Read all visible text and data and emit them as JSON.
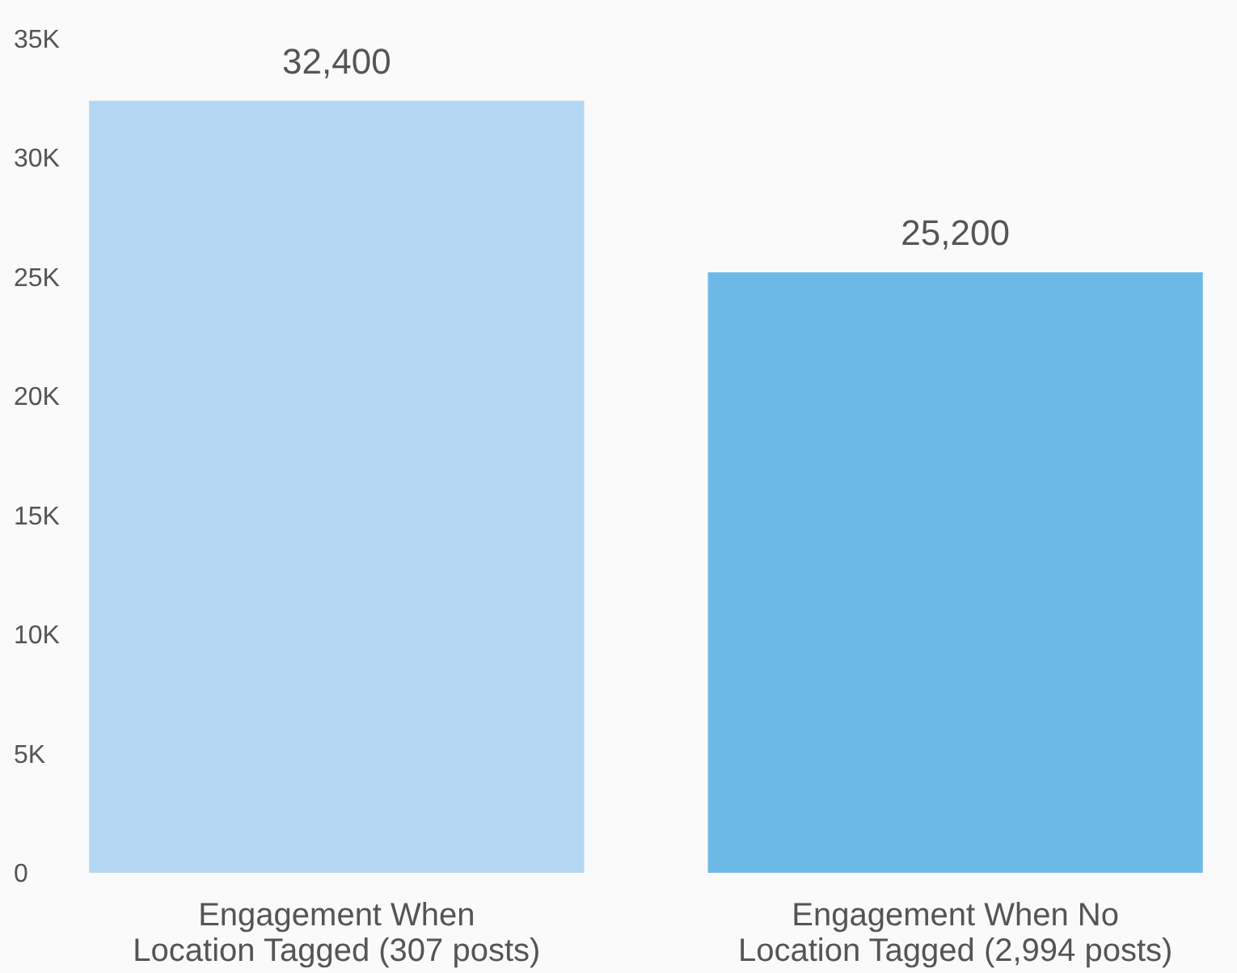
{
  "chart_data": {
    "type": "bar",
    "categories": [
      "Engagement When\nLocation Tagged (307 posts)",
      "Engagement When No\nLocation Tagged (2,994 posts)"
    ],
    "values": [
      32400,
      25200
    ],
    "colors": [
      "#b3d6f2",
      "#6cb9e8"
    ],
    "value_labels": [
      "32,400",
      "25,200"
    ],
    "ylim": [
      0,
      35000
    ],
    "yticks": [
      {
        "value": 0,
        "label": "0"
      },
      {
        "value": 5000,
        "label": "5K"
      },
      {
        "value": 10000,
        "label": "10K"
      },
      {
        "value": 15000,
        "label": "15K"
      },
      {
        "value": 20000,
        "label": "20K"
      },
      {
        "value": 25000,
        "label": "25K"
      },
      {
        "value": 30000,
        "label": "30K"
      },
      {
        "value": 35000,
        "label": "35K"
      }
    ],
    "grid": false
  }
}
